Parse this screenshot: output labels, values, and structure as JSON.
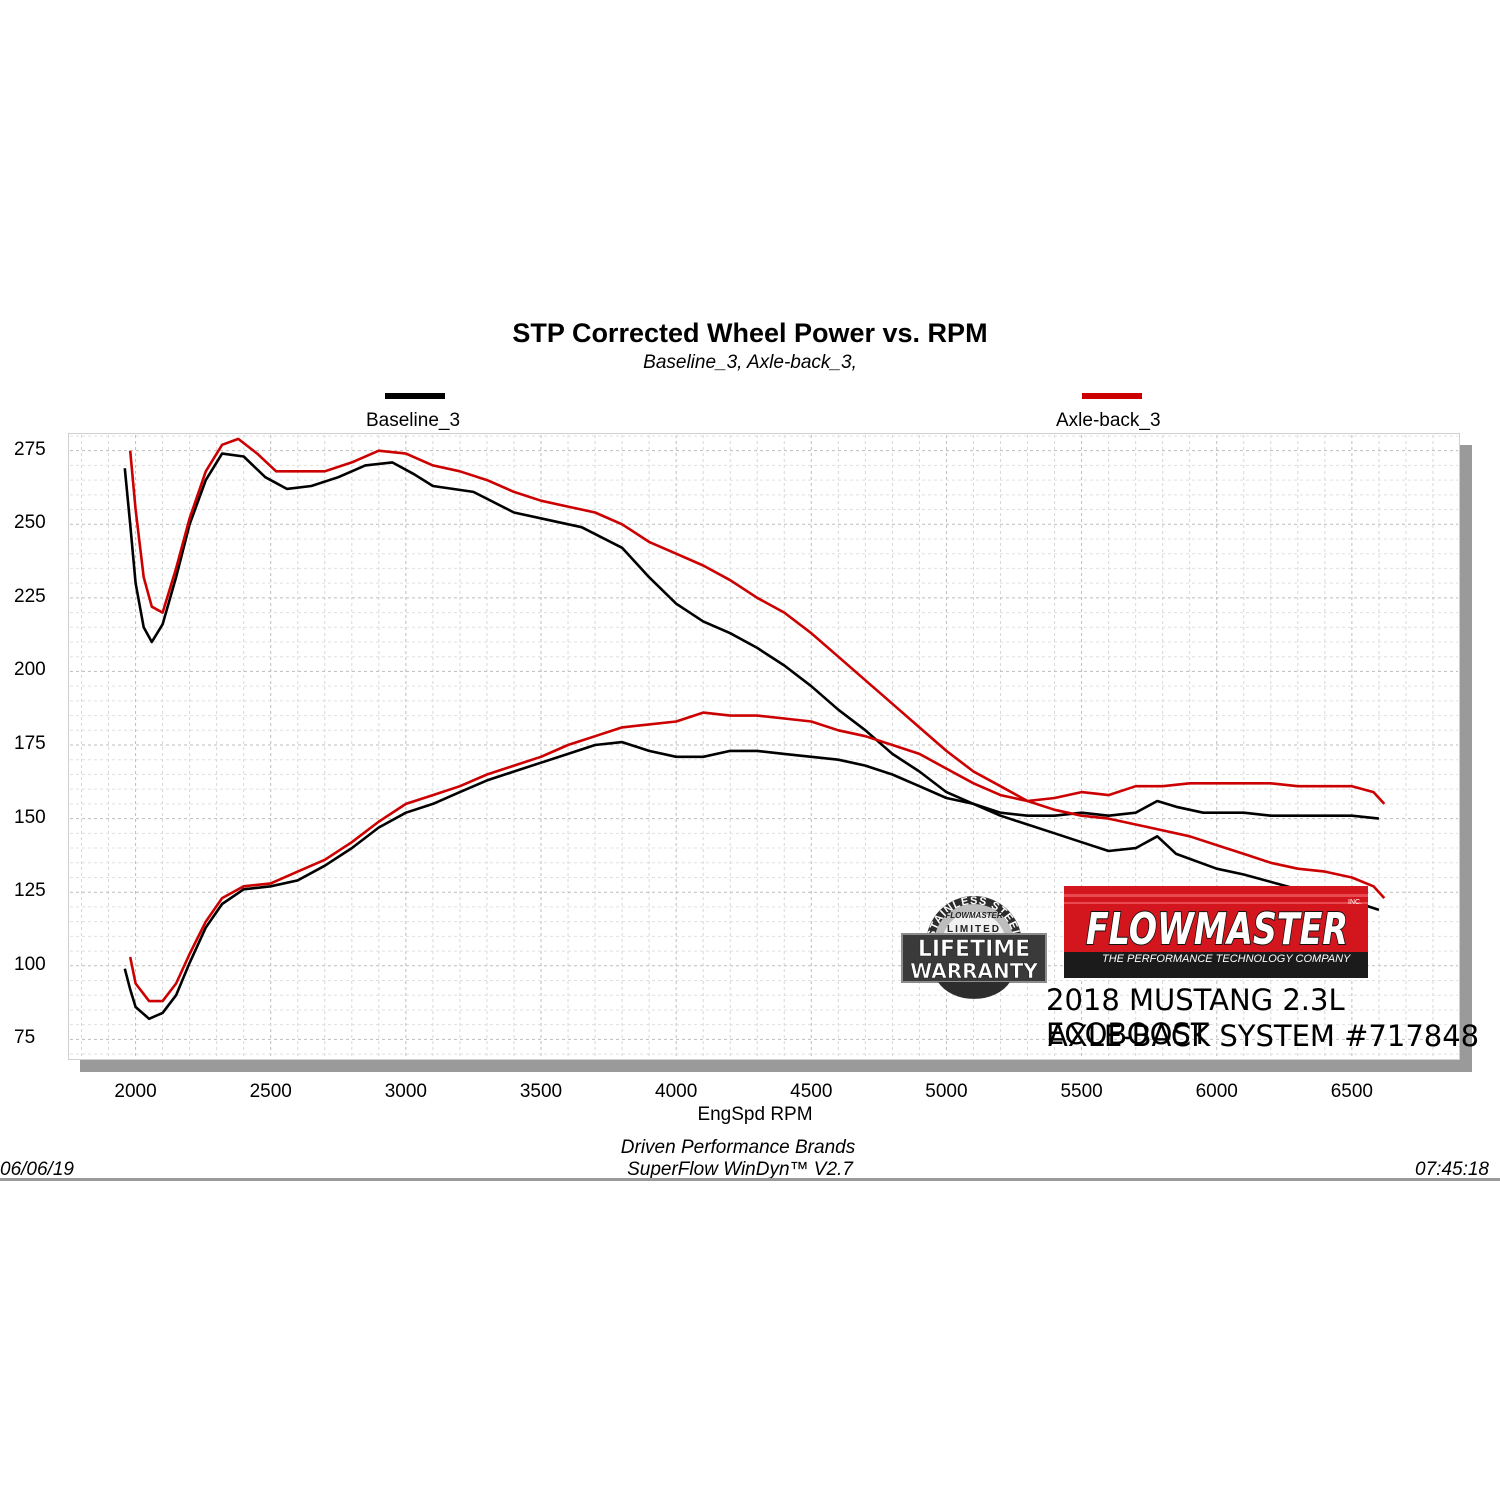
{
  "chart_data": {
    "type": "line",
    "title": "STP Corrected Wheel Power vs. RPM",
    "subtitle": "Baseline_3, Axle-back_3,",
    "xlabel": "EngSpd  RPM",
    "ylabel": "",
    "xlim": [
      1750,
      6900
    ],
    "ylim": [
      68,
      281
    ],
    "xticks": [
      "2000",
      "2500",
      "3000",
      "3500",
      "4000",
      "4500",
      "5000",
      "5500",
      "6000",
      "6500"
    ],
    "yticks": [
      "275",
      "250",
      "225",
      "200",
      "175",
      "150",
      "125",
      "100",
      "75"
    ],
    "grid": true,
    "legend_position": "top",
    "series": [
      {
        "name": "Baseline_3",
        "color": "#000000",
        "curves": [
          {
            "measure": "power",
            "points": [
              [
                1960,
                269
              ],
              [
                1980,
                250
              ],
              [
                2000,
                230
              ],
              [
                2030,
                215
              ],
              [
                2060,
                210
              ],
              [
                2100,
                216
              ],
              [
                2150,
                232
              ],
              [
                2200,
                250
              ],
              [
                2260,
                265
              ],
              [
                2320,
                274
              ],
              [
                2400,
                273
              ],
              [
                2480,
                266
              ],
              [
                2560,
                262
              ],
              [
                2650,
                263
              ],
              [
                2750,
                266
              ],
              [
                2850,
                270
              ],
              [
                2950,
                271
              ],
              [
                3030,
                267
              ],
              [
                3100,
                263
              ],
              [
                3250,
                261
              ],
              [
                3400,
                254
              ],
              [
                3550,
                251
              ],
              [
                3650,
                249
              ],
              [
                3800,
                242
              ],
              [
                3900,
                232
              ],
              [
                4000,
                223
              ],
              [
                4100,
                217
              ],
              [
                4200,
                213
              ],
              [
                4300,
                208
              ],
              [
                4400,
                202
              ],
              [
                4500,
                195
              ],
              [
                4600,
                187
              ],
              [
                4700,
                180
              ],
              [
                4800,
                172
              ],
              [
                4900,
                166
              ],
              [
                5000,
                159
              ],
              [
                5100,
                155
              ],
              [
                5200,
                151
              ],
              [
                5300,
                148
              ],
              [
                5400,
                145
              ],
              [
                5500,
                142
              ],
              [
                5600,
                139
              ],
              [
                5700,
                140
              ],
              [
                5780,
                144
              ],
              [
                5850,
                138
              ],
              [
                6000,
                133
              ],
              [
                6100,
                131
              ],
              [
                6300,
                126
              ],
              [
                6500,
                122
              ],
              [
                6600,
                119
              ]
            ]
          },
          {
            "measure": "torque",
            "points": [
              [
                1960,
                99
              ],
              [
                1980,
                92
              ],
              [
                2000,
                86
              ],
              [
                2050,
                82
              ],
              [
                2100,
                84
              ],
              [
                2150,
                90
              ],
              [
                2200,
                101
              ],
              [
                2260,
                113
              ],
              [
                2320,
                121
              ],
              [
                2400,
                126
              ],
              [
                2500,
                127
              ],
              [
                2600,
                129
              ],
              [
                2700,
                134
              ],
              [
                2800,
                140
              ],
              [
                2900,
                147
              ],
              [
                3000,
                152
              ],
              [
                3100,
                155
              ],
              [
                3200,
                159
              ],
              [
                3300,
                163
              ],
              [
                3400,
                166
              ],
              [
                3500,
                169
              ],
              [
                3600,
                172
              ],
              [
                3700,
                175
              ],
              [
                3800,
                176
              ],
              [
                3900,
                173
              ],
              [
                4000,
                171
              ],
              [
                4100,
                171
              ],
              [
                4200,
                173
              ],
              [
                4300,
                173
              ],
              [
                4400,
                172
              ],
              [
                4500,
                171
              ],
              [
                4600,
                170
              ],
              [
                4700,
                168
              ],
              [
                4800,
                165
              ],
              [
                4900,
                161
              ],
              [
                5000,
                157
              ],
              [
                5100,
                155
              ],
              [
                5200,
                152
              ],
              [
                5300,
                151
              ],
              [
                5400,
                151
              ],
              [
                5500,
                152
              ],
              [
                5600,
                151
              ],
              [
                5700,
                152
              ],
              [
                5780,
                156
              ],
              [
                5850,
                154
              ],
              [
                5950,
                152
              ],
              [
                6100,
                152
              ],
              [
                6200,
                151
              ],
              [
                6300,
                151
              ],
              [
                6400,
                151
              ],
              [
                6500,
                151
              ],
              [
                6600,
                150
              ]
            ]
          }
        ]
      },
      {
        "name": "Axle-back_3",
        "color": "#cc0000",
        "curves": [
          {
            "measure": "power",
            "points": [
              [
                1980,
                275
              ],
              [
                2000,
                255
              ],
              [
                2030,
                232
              ],
              [
                2060,
                222
              ],
              [
                2100,
                220
              ],
              [
                2150,
                235
              ],
              [
                2200,
                252
              ],
              [
                2260,
                268
              ],
              [
                2320,
                277
              ],
              [
                2380,
                279
              ],
              [
                2450,
                274
              ],
              [
                2520,
                268
              ],
              [
                2600,
                268
              ],
              [
                2700,
                268
              ],
              [
                2800,
                271
              ],
              [
                2900,
                275
              ],
              [
                3000,
                274
              ],
              [
                3100,
                270
              ],
              [
                3200,
                268
              ],
              [
                3300,
                265
              ],
              [
                3400,
                261
              ],
              [
                3500,
                258
              ],
              [
                3600,
                256
              ],
              [
                3700,
                254
              ],
              [
                3800,
                250
              ],
              [
                3900,
                244
              ],
              [
                4000,
                240
              ],
              [
                4100,
                236
              ],
              [
                4200,
                231
              ],
              [
                4300,
                225
              ],
              [
                4400,
                220
              ],
              [
                4500,
                213
              ],
              [
                4600,
                205
              ],
              [
                4700,
                197
              ],
              [
                4800,
                189
              ],
              [
                4900,
                181
              ],
              [
                5000,
                173
              ],
              [
                5100,
                166
              ],
              [
                5200,
                161
              ],
              [
                5300,
                156
              ],
              [
                5400,
                153
              ],
              [
                5500,
                151
              ],
              [
                5600,
                150
              ],
              [
                5700,
                148
              ],
              [
                5800,
                146
              ],
              [
                5900,
                144
              ],
              [
                6000,
                141
              ],
              [
                6100,
                138
              ],
              [
                6200,
                135
              ],
              [
                6300,
                133
              ],
              [
                6400,
                132
              ],
              [
                6500,
                130
              ],
              [
                6580,
                127
              ],
              [
                6620,
                123
              ]
            ]
          },
          {
            "measure": "torque",
            "points": [
              [
                1980,
                103
              ],
              [
                2000,
                94
              ],
              [
                2050,
                88
              ],
              [
                2100,
                88
              ],
              [
                2150,
                94
              ],
              [
                2200,
                104
              ],
              [
                2260,
                115
              ],
              [
                2320,
                123
              ],
              [
                2400,
                127
              ],
              [
                2500,
                128
              ],
              [
                2600,
                132
              ],
              [
                2700,
                136
              ],
              [
                2800,
                142
              ],
              [
                2900,
                149
              ],
              [
                3000,
                155
              ],
              [
                3100,
                158
              ],
              [
                3200,
                161
              ],
              [
                3300,
                165
              ],
              [
                3400,
                168
              ],
              [
                3500,
                171
              ],
              [
                3600,
                175
              ],
              [
                3700,
                178
              ],
              [
                3800,
                181
              ],
              [
                3900,
                182
              ],
              [
                4000,
                183
              ],
              [
                4100,
                186
              ],
              [
                4200,
                185
              ],
              [
                4300,
                185
              ],
              [
                4400,
                184
              ],
              [
                4500,
                183
              ],
              [
                4600,
                180
              ],
              [
                4700,
                178
              ],
              [
                4800,
                175
              ],
              [
                4900,
                172
              ],
              [
                5000,
                167
              ],
              [
                5100,
                162
              ],
              [
                5200,
                158
              ],
              [
                5300,
                156
              ],
              [
                5400,
                157
              ],
              [
                5500,
                159
              ],
              [
                5600,
                158
              ],
              [
                5700,
                161
              ],
              [
                5800,
                161
              ],
              [
                5900,
                162
              ],
              [
                6000,
                162
              ],
              [
                6100,
                162
              ],
              [
                6200,
                162
              ],
              [
                6300,
                161
              ],
              [
                6400,
                161
              ],
              [
                6500,
                161
              ],
              [
                6580,
                159
              ],
              [
                6620,
                155
              ]
            ]
          }
        ]
      }
    ]
  },
  "footer": {
    "credit_line1": "Driven Performance Brands",
    "credit_line2": "SuperFlow WinDyn™  V2.7",
    "date": "06/06/19",
    "time": "07:45:18"
  },
  "branding": {
    "warranty_badge_text": [
      "STAINLESS STEEL",
      "FLOWMASTER",
      "LIMITED",
      "LIFETIME",
      "WARRANTY"
    ],
    "flowmaster_logo": "FLOWMASTER",
    "flowmaster_inc": "INC.",
    "flowmaster_tagline": "THE PERFORMANCE TECHNOLOGY COMPANY",
    "caption_line1": "2018 MUSTANG 2.3L ECOBOOST",
    "caption_line2": "AXLE-BACK SYSTEM #717848"
  },
  "colors": {
    "baseline": "#000000",
    "axleback": "#cc0000",
    "brand_red": "#d3161d"
  }
}
